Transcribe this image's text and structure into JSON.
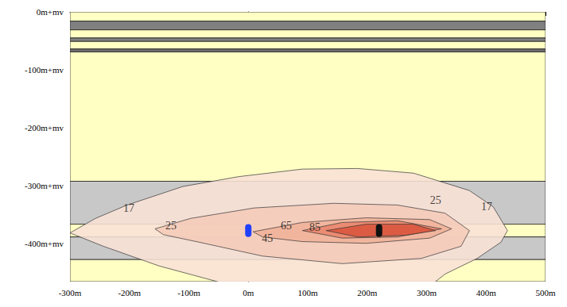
{
  "chart_data": {
    "type": "contour",
    "xlim": [
      -300,
      500
    ],
    "ylim": [
      -465,
      0
    ],
    "xticks": [
      {
        "value": -300,
        "label": "-300m"
      },
      {
        "value": -200,
        "label": "-200m"
      },
      {
        "value": -100,
        "label": "-100m"
      },
      {
        "value": 0,
        "label": "0m"
      },
      {
        "value": 100,
        "label": "100m"
      },
      {
        "value": 200,
        "label": "200m"
      },
      {
        "value": 300,
        "label": "300m"
      },
      {
        "value": 400,
        "label": "400m"
      },
      {
        "value": 500,
        "label": "500m"
      }
    ],
    "yticks": [
      {
        "value": 0,
        "label": "0m+mv"
      },
      {
        "value": -100,
        "label": "-100m+mv"
      },
      {
        "value": -200,
        "label": "-200m+mv"
      },
      {
        "value": -300,
        "label": "-300m+mv"
      },
      {
        "value": -400,
        "label": "-400m+mv"
      }
    ],
    "layers": [
      {
        "top": 0,
        "bottom": -16,
        "color": "#ffffc4"
      },
      {
        "top": -16,
        "bottom": -31,
        "color": "#808080"
      },
      {
        "top": -31,
        "bottom": -45,
        "color": "#ffffc4"
      },
      {
        "top": -45,
        "bottom": -51,
        "color": "#808080"
      },
      {
        "top": -51,
        "bottom": -64,
        "color": "#ffffc4"
      },
      {
        "top": -64,
        "bottom": -69,
        "color": "#707070"
      },
      {
        "top": -69,
        "bottom": -292,
        "color": "#ffffc4"
      },
      {
        "top": -292,
        "bottom": -366,
        "color": "#c8c8c8"
      },
      {
        "top": -366,
        "bottom": -388,
        "color": "#ffffc4"
      },
      {
        "top": -388,
        "bottom": -427,
        "color": "#c8c8c8"
      },
      {
        "top": -427,
        "bottom": -465,
        "color": "#ffffc4"
      }
    ],
    "contours": [
      {
        "level": 17,
        "color": "#f9e1d6",
        "points": [
          [
            -300,
            -381
          ],
          [
            -257,
            -356
          ],
          [
            -204,
            -333
          ],
          [
            -110,
            -301
          ],
          [
            -16,
            -284
          ],
          [
            91,
            -271
          ],
          [
            184,
            -270
          ],
          [
            278,
            -278
          ],
          [
            372,
            -308
          ],
          [
            412,
            -336
          ],
          [
            436,
            -377
          ],
          [
            425,
            -397
          ],
          [
            385,
            -425
          ],
          [
            331,
            -452
          ],
          [
            305,
            -473
          ],
          [
            -16,
            -475
          ],
          [
            -150,
            -438
          ],
          [
            -244,
            -404
          ]
        ],
        "label_positions": [
          [
            -201,
            -338
          ],
          [
            401,
            -336
          ]
        ]
      },
      {
        "level": 25,
        "color": "#f5cbb8",
        "points": [
          [
            -157,
            -374
          ],
          [
            -97,
            -356
          ],
          [
            10,
            -338
          ],
          [
            144,
            -330
          ],
          [
            251,
            -333
          ],
          [
            331,
            -347
          ],
          [
            372,
            -377
          ],
          [
            358,
            -404
          ],
          [
            291,
            -425
          ],
          [
            158,
            -434
          ],
          [
            24,
            -421
          ],
          [
            -83,
            -397
          ],
          [
            -143,
            -384
          ]
        ],
        "label_positions": [
          [
            -130,
            -368
          ],
          [
            315,
            -325
          ]
        ]
      },
      {
        "level": 45,
        "color": "#f0b29a",
        "points": [
          [
            8,
            -379
          ],
          [
            91,
            -363
          ],
          [
            198,
            -355
          ],
          [
            305,
            -358
          ],
          [
            342,
            -374
          ],
          [
            305,
            -390
          ],
          [
            198,
            -399
          ],
          [
            91,
            -396
          ],
          [
            24,
            -388
          ]
        ],
        "label_positions": [
          [
            32,
            -390
          ]
        ]
      },
      {
        "level": 65,
        "color": "#e8856c",
        "points": [
          [
            91,
            -377
          ],
          [
            158,
            -363
          ],
          [
            251,
            -360
          ],
          [
            325,
            -374
          ],
          [
            251,
            -388
          ],
          [
            158,
            -390
          ]
        ],
        "label_positions": [
          [
            64,
            -368
          ]
        ]
      },
      {
        "level": 85,
        "color": "#d9553c",
        "points": [
          [
            131,
            -377
          ],
          [
            198,
            -366
          ],
          [
            278,
            -366
          ],
          [
            315,
            -377
          ],
          [
            265,
            -385
          ],
          [
            184,
            -388
          ]
        ],
        "label_positions": [
          [
            112,
            -371
          ]
        ]
      }
    ],
    "wells": [
      {
        "x": 0,
        "top": -366,
        "bottom": -388,
        "color": "#2040ff"
      },
      {
        "x": 220,
        "top": -366,
        "bottom": -388,
        "color": "#111111"
      }
    ]
  }
}
